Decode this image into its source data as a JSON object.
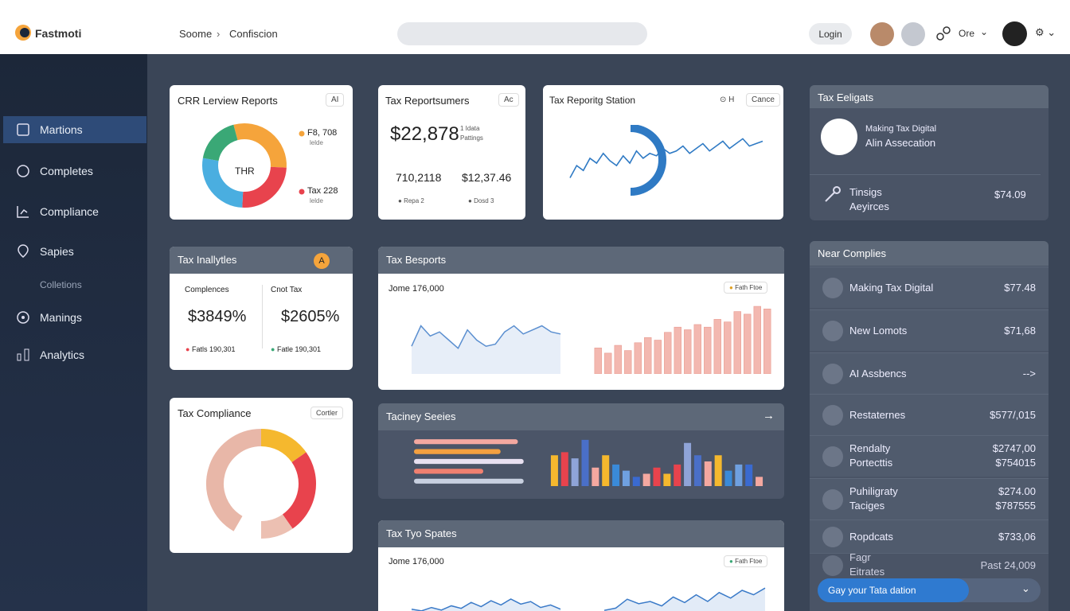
{
  "header": {
    "brand": "Fastmoti",
    "breadcrumb": [
      "Soome",
      "Confiscion"
    ],
    "login": "Login",
    "user_menu": "Ore"
  },
  "sidebar": {
    "items": [
      "Martions",
      "Completes",
      "Compliance",
      "Sapies",
      "Colletions",
      "Manings",
      "Analytics"
    ]
  },
  "cards": {
    "reports": {
      "title": "CRR Lerview Reports",
      "badge": "AI",
      "center": "THR",
      "legend": [
        {
          "value": "F8, 708",
          "sub": "lelde"
        },
        {
          "value": "Tax 228",
          "sub": "lelde"
        }
      ]
    },
    "consumers": {
      "title": "Tax Reportsumers",
      "badge": "Ac",
      "total": "$22,878",
      "note": [
        "1 Idata",
        "Pattings"
      ],
      "stats": [
        "710,2118",
        "$12,37.46"
      ],
      "legend": [
        "Repa 2",
        "Dosd 3"
      ]
    },
    "station": {
      "title": "Tax Reporitg Station",
      "badge": "H",
      "button": "Cance"
    },
    "analytics": {
      "title": "Tax Inallytles",
      "badge": "A",
      "cols": [
        {
          "label": "Complences",
          "value": "$3849%",
          "legend": "Fatls 190,301"
        },
        {
          "label": "Cnot Tax",
          "value": "$2605%",
          "legend": "Fatle 190,301"
        }
      ]
    },
    "besports": {
      "title": "Tax Besports",
      "subtitle": "Jome 176,000",
      "legend": "Fath Ftoe"
    },
    "compliance": {
      "title": "Tax Compliance",
      "button": "Cortler"
    },
    "series": {
      "title": "Taciney Seeies"
    },
    "spates": {
      "title": "Tax Tyo Spates",
      "subtitle": "Jome 176,000",
      "legend": "Fath Ftoe"
    }
  },
  "eligats": {
    "title": "Tax Eeligats",
    "lines": [
      "Making Tax Digital",
      "Alin Assecation"
    ],
    "item": {
      "lines": [
        "Tinsigs",
        "Aeyirces"
      ],
      "amount": "$74.09"
    }
  },
  "complies": {
    "title": "Near Complies",
    "rows": [
      {
        "name": [
          "Making Tax Digital"
        ],
        "amount": [
          "$77.48"
        ]
      },
      {
        "name": [
          "New Lomots"
        ],
        "amount": [
          "$71,68"
        ]
      },
      {
        "name": [
          "AI Assbencs"
        ],
        "amount": [
          "-->"
        ]
      },
      {
        "name": [
          "Restaternes"
        ],
        "amount": [
          "$577/,015"
        ]
      },
      {
        "name": [
          "Rendalty",
          "Portecttis"
        ],
        "amount": [
          "$2747,00",
          "$754015"
        ]
      },
      {
        "name": [
          "Puhiligraty",
          "Taciges"
        ],
        "amount": [
          "$274.00",
          "$787555"
        ]
      },
      {
        "name": [
          "Ropdcats"
        ],
        "amount": [
          "$733,06"
        ]
      },
      {
        "name": [
          "Fagr",
          "Eitrates"
        ],
        "amount": [
          "Past 24,009"
        ]
      }
    ],
    "button": "Gay your Tata dation"
  },
  "charts": {
    "donut": {
      "type": "donut",
      "values": [
        30,
        25,
        27,
        18
      ],
      "colors": [
        "#f5a43b",
        "#e8434d",
        "#4aaee0",
        "#3aa876"
      ]
    },
    "station": {
      "type": "line",
      "values": [
        8,
        13,
        11,
        16,
        14,
        18,
        15,
        13,
        17,
        14,
        19,
        16,
        18,
        17,
        20,
        18,
        19,
        21,
        18,
        20,
        22,
        19,
        21,
        23,
        20,
        22,
        24,
        21,
        22,
        23
      ],
      "color": "#2f7ac4",
      "ylim": [
        0,
        30
      ]
    },
    "besports_left": {
      "type": "area",
      "values": [
        12,
        22,
        17,
        19,
        15,
        11,
        20,
        15,
        12,
        13,
        19,
        22,
        18,
        20,
        22,
        19,
        18
      ],
      "color": "#5b8fd0",
      "ylim": [
        0,
        30
      ]
    },
    "besports_right": {
      "type": "columns",
      "values": [
        10,
        8,
        11,
        9,
        12,
        14,
        13,
        16,
        18,
        17,
        19,
        18,
        21,
        20,
        24,
        23,
        26,
        25
      ],
      "color": "#f3b8b0",
      "ylim": [
        0,
        30
      ]
    },
    "gauge": {
      "type": "gauge",
      "values": [
        150,
        55,
        90,
        35
      ],
      "colors": [
        "#e8b7a8",
        "#f5b82e",
        "#e8434d",
        "#ecc0b2"
      ]
    },
    "series_h": {
      "type": "hbars",
      "values": [
        90,
        75,
        95,
        60,
        95
      ],
      "colors": [
        "#f4a8a0",
        "#f4a040",
        "#e8e0f0",
        "#f08070",
        "#c8d0e0"
      ],
      "xlim": [
        0,
        100
      ]
    },
    "series_v": {
      "type": "columns",
      "values": [
        20,
        22,
        18,
        30,
        12,
        20,
        14,
        10,
        6,
        8,
        12,
        8,
        14,
        28,
        20,
        16,
        20,
        10,
        14,
        14,
        6
      ],
      "colors": [
        "#f5b82e",
        "#e8434d",
        "#8fa4d8",
        "#4a6fc8",
        "#f4a8a0",
        "#f5b82e",
        "#3a8ad8",
        "#6fa0e0",
        "#3a6ad0",
        "#f4a8a0",
        "#e8434d"
      ],
      "ylim": [
        0,
        32
      ]
    },
    "spates_left": {
      "type": "area",
      "values": [
        4,
        2,
        6,
        3,
        8,
        5,
        12,
        7,
        14,
        9,
        16,
        10,
        13,
        6,
        9,
        4
      ],
      "color": "#3a7ac8",
      "ylim": [
        0,
        30
      ]
    },
    "spates_right": {
      "type": "area",
      "values": [
        2,
        4,
        12,
        8,
        10,
        6,
        14,
        9,
        16,
        10,
        18,
        13,
        20,
        16,
        22
      ],
      "color": "#3a7ac8",
      "ylim": [
        0,
        30
      ]
    }
  }
}
